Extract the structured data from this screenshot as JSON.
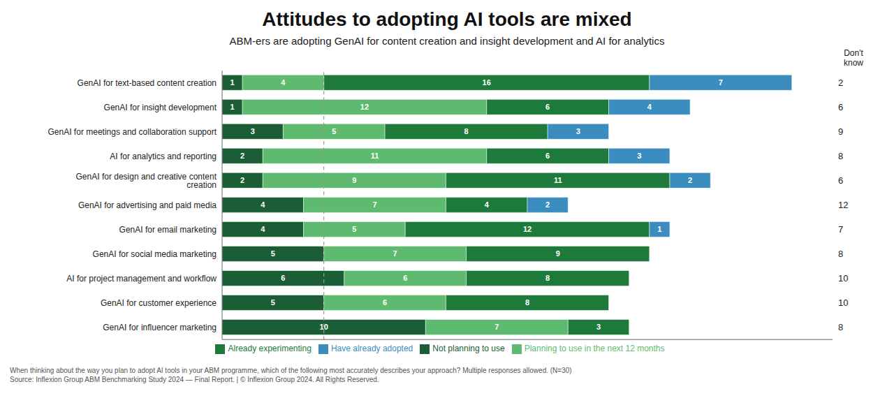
{
  "chart_data": {
    "type": "bar",
    "orientation": "horizontal",
    "stacked": true,
    "data_labels": true,
    "tick_labels": "y",
    "legend": "bottom",
    "title": "Attitudes to adopting AI tools are mixed",
    "subtitle": "ABM-ers are adopting GenAI for content creation and insight development and AI for analytics",
    "annotations": [
      "When thinking about the way you plan to adopt AI tools in your ABM programme, which of the following most accurately describes your approach? Multiple responses allowed. (N=30)",
      "Source: Inflexion Group ABM Benchmarking Study 2024 — Final Report. | © Inflexion Group 2024. All Rights Reserved."
    ],
    "categories": [
      "GenAI for text-based content creation",
      "GenAI for insight development",
      "GenAI for meetings and collaboration support",
      "AI for analytics and reporting",
      "GenAI for design and creative content creation",
      "GenAI for advertising and paid media",
      "GenAI for email marketing",
      "GenAI for social media marketing",
      "AI for project management and workflow",
      "GenAI for customer experience",
      "GenAI for influencer marketing"
    ],
    "xlim": [
      0,
      30
    ],
    "reference_line_x": 5,
    "dont_know": {
      "label": "Don't\nknow",
      "values": [
        2,
        6,
        9,
        8,
        6,
        12,
        7,
        8,
        10,
        10,
        8
      ]
    },
    "series": [
      {
        "name": "Not planning to use",
        "color": "#1b5e35",
        "values": [
          1,
          1,
          3,
          2,
          2,
          4,
          4,
          5,
          6,
          5,
          10
        ]
      },
      {
        "name": "Planning to use in the next 12 months",
        "color": "#5dba6e",
        "values": [
          4,
          12,
          5,
          11,
          9,
          7,
          5,
          7,
          6,
          6,
          7
        ]
      },
      {
        "name": "Already experimenting",
        "color": "#1d7a3a",
        "values": [
          16,
          6,
          8,
          6,
          11,
          4,
          12,
          9,
          8,
          8,
          3
        ]
      },
      {
        "name": "Have already adopted",
        "color": "#3b8dbf",
        "values": [
          7,
          4,
          3,
          3,
          2,
          2,
          1,
          0,
          0,
          0,
          0
        ]
      }
    ]
  }
}
